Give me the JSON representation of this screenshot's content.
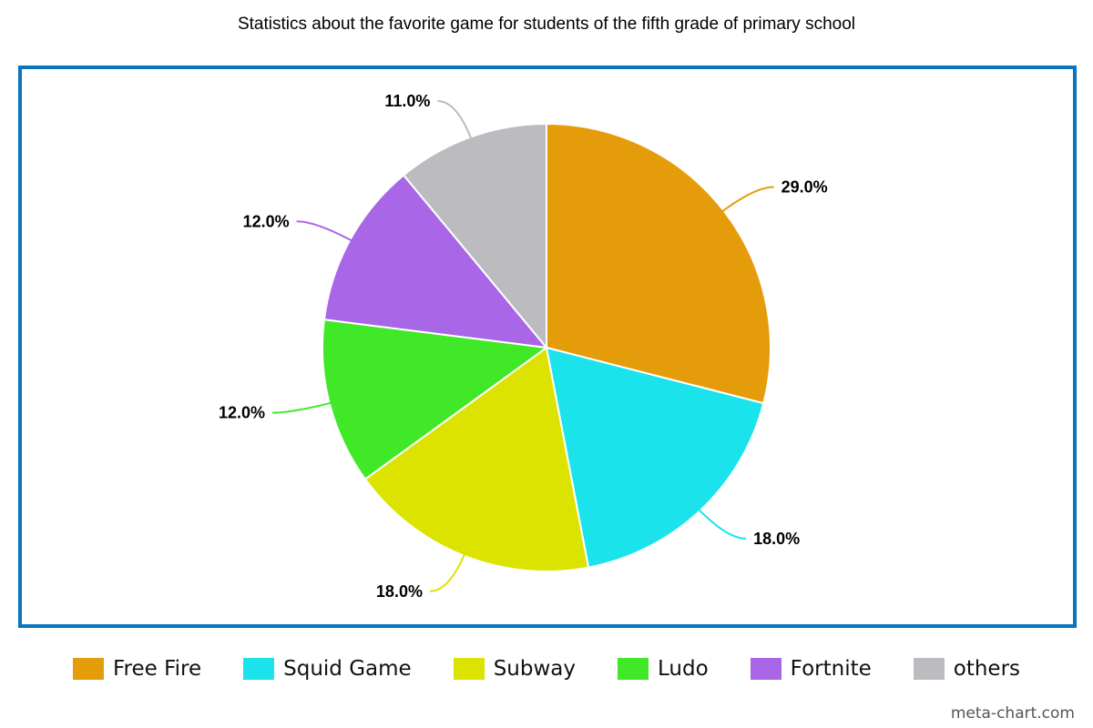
{
  "chart_data": {
    "type": "pie",
    "title": "Statistics about the favorite game for students of the fifth grade of primary school",
    "slices": [
      {
        "name": "Free Fire",
        "value": 29.0,
        "label": "29.0%",
        "color": "#e59c0a"
      },
      {
        "name": "Squid Game",
        "value": 18.0,
        "label": "18.0%",
        "color": "#1be3ec"
      },
      {
        "name": "Subway",
        "value": 18.0,
        "label": "18.0%",
        "color": "#dce300"
      },
      {
        "name": "Ludo",
        "value": 12.0,
        "label": "12.0%",
        "color": "#40e828"
      },
      {
        "name": "Fortnite",
        "value": 12.0,
        "label": "12.0%",
        "color": "#a967e8"
      },
      {
        "name": "others",
        "value": 11.0,
        "label": "11.0%",
        "color": "#bcbcc0"
      }
    ],
    "legend_position": "bottom",
    "frame_color": "#0b74bf"
  },
  "watermark": "meta-chart.com"
}
